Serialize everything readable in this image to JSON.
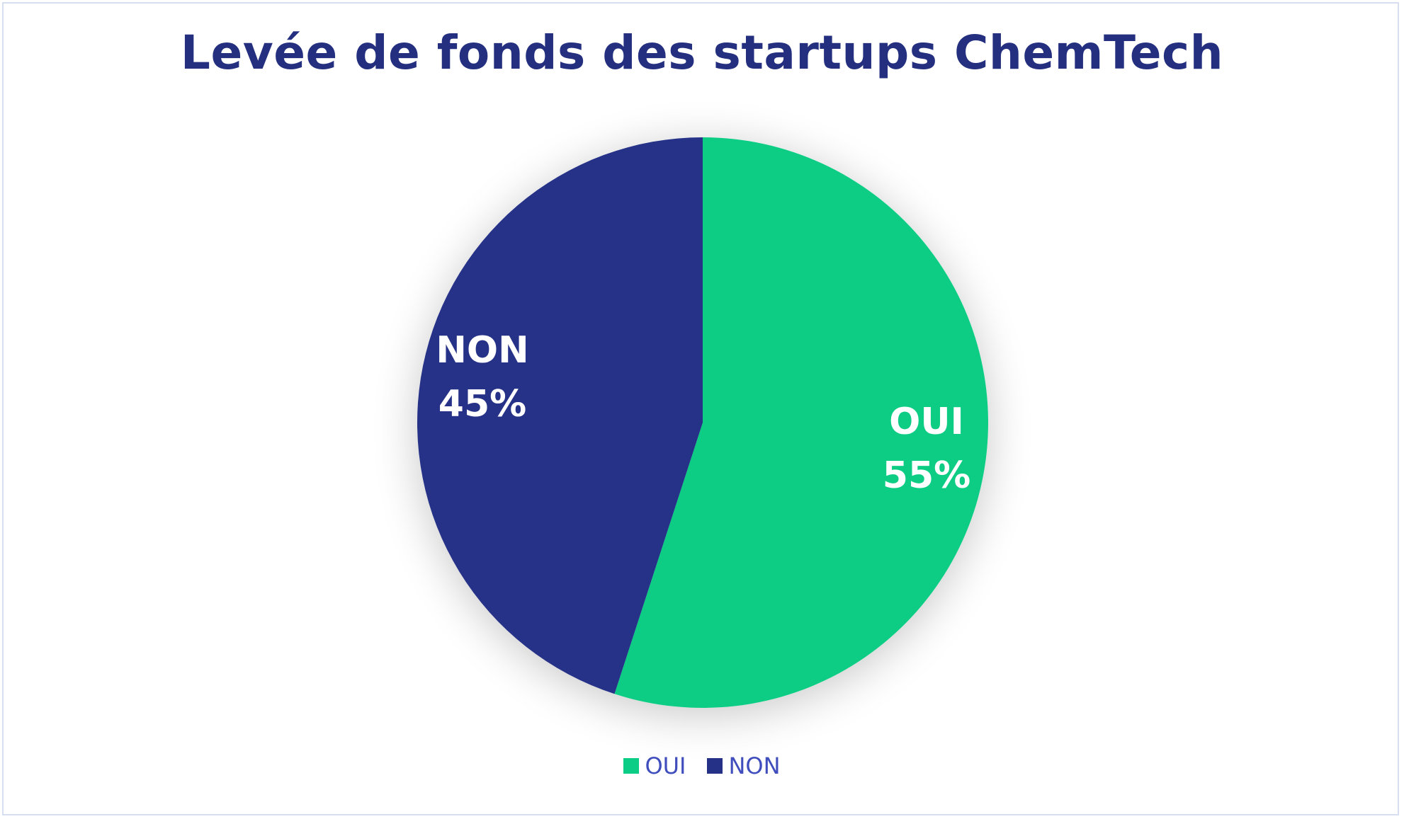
{
  "chart_data": {
    "type": "pie",
    "title": "Levée de fonds des startups ChemTech",
    "categories": [
      "OUI",
      "NON"
    ],
    "values": [
      55,
      45
    ],
    "unit": "%",
    "slice_labels": [
      {
        "category": "OUI",
        "value_text": "55%"
      },
      {
        "category": "NON",
        "value_text": "45%"
      }
    ],
    "colors": [
      "#0ccd85",
      "#253087"
    ],
    "start_angle": "12 o'clock",
    "direction": "clockwise",
    "legend": {
      "position": "bottom",
      "entries": [
        "OUI",
        "NON"
      ]
    }
  }
}
